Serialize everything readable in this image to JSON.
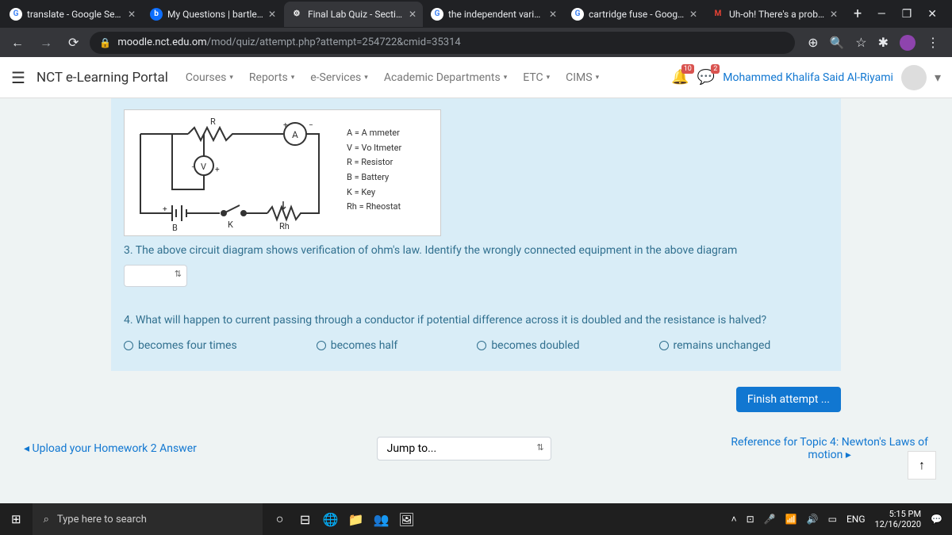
{
  "browser": {
    "tabs": [
      {
        "label": "translate - Google Sear",
        "icon": "G",
        "iconBg": "#fff",
        "iconColor": "#4285f4"
      },
      {
        "label": "My Questions | bartleby",
        "icon": "b",
        "iconBg": "#0d6efd",
        "iconColor": "#fff"
      },
      {
        "label": "Final Lab Quiz - Section",
        "icon": "⚙",
        "iconBg": "transparent",
        "iconColor": "#fff",
        "active": true
      },
      {
        "label": "the independent variab",
        "icon": "G",
        "iconBg": "#fff",
        "iconColor": "#4285f4"
      },
      {
        "label": "cartridge fuse - Google",
        "icon": "G",
        "iconBg": "#fff",
        "iconColor": "#4285f4"
      },
      {
        "label": "Uh-oh! There's a proble",
        "icon": "M",
        "iconBg": "transparent",
        "iconColor": "#ea4335"
      }
    ],
    "url_domain": "moodle.nct.edu.om",
    "url_path": "/mod/quiz/attempt.php?attempt=254722&cmid=35314"
  },
  "header": {
    "portal": "NCT e-Learning Portal",
    "nav": [
      "Courses",
      "Reports",
      "e-Services",
      "Academic Departments",
      "ETC",
      "CIMS"
    ],
    "notif1_badge": "10",
    "notif2_badge": "2",
    "username": "Mohammed Khalifa Said Al-Riyami"
  },
  "quiz": {
    "circuit_legend": [
      "A = A  mmeter",
      "V =   Vo ltmeter",
      "R = Resistor",
      "B = Battery",
      "K = Key",
      "Rh = Rheostat"
    ],
    "circuit_labels": {
      "R": "R",
      "A": "A",
      "V": "V",
      "B": "B",
      "K": "K",
      "Rh": "Rh"
    },
    "q3": "3. The above circuit diagram shows verification of ohm's law. Identify the wrongly connected equipment in the above diagram",
    "q4": "4. What will happen to current passing through a conductor if potential difference across it is doubled and the resistance is halved?",
    "q4_options": [
      "becomes four times",
      "becomes half",
      "becomes doubled",
      "remains unchanged"
    ],
    "finish": "Finish attempt ..."
  },
  "nav_bottom": {
    "prev": "◂ Upload your Homework 2 Answer",
    "jump": "Jump to...",
    "next_line1": "Reference for Topic 4: Newton's Laws of",
    "next_line2": "motion ▸"
  },
  "taskbar": {
    "search_placeholder": "Type here to search",
    "lang": "ENG",
    "time": "5:15 PM",
    "date": "12/16/2020"
  }
}
